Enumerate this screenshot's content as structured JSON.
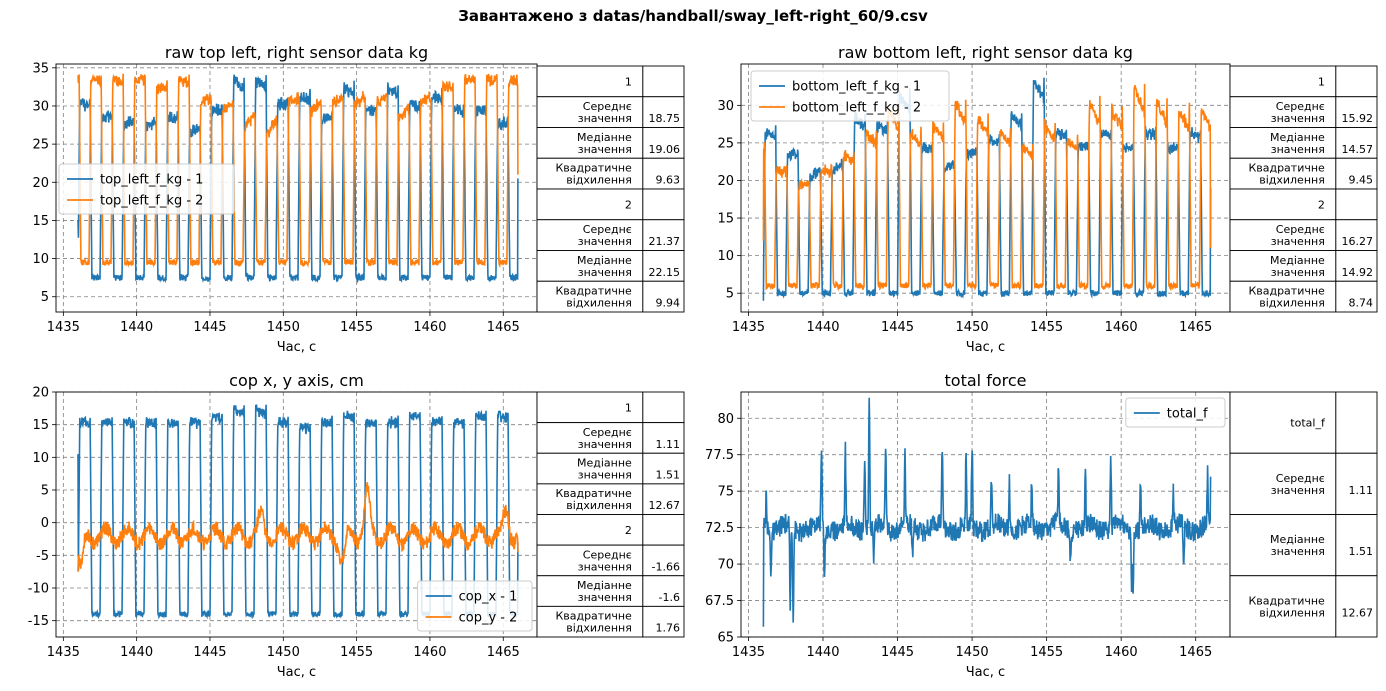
{
  "suptitle": "Завантажено з datas/handball/sway_left-right_60/9.csv",
  "colors": {
    "series1": "#1f77b4",
    "series2": "#ff7f0e",
    "grid": "#808080"
  },
  "chart_data": [
    {
      "type": "line",
      "title": "raw top left, right sensor data kg",
      "xlabel": "Час, с",
      "ylabel": "",
      "xlim": [
        1434.5,
        1467.3
      ],
      "ylim": [
        3.0,
        35.5
      ],
      "xticks": [
        1435,
        1440,
        1445,
        1450,
        1455,
        1460,
        1465
      ],
      "yticks": [
        5,
        10,
        15,
        20,
        25,
        30,
        35
      ],
      "grid": true,
      "legend_position": "center-left",
      "series": [
        {
          "name": "top_left_f_kg - 1",
          "kind": "square",
          "phase": 0.0,
          "min": 7.5,
          "max": 30.0,
          "start": 15.0,
          "end": 20.5,
          "peaks": [
            31,
            29,
            28,
            28,
            29,
            27,
            30,
            34,
            34,
            31,
            32,
            29,
            33,
            30,
            33,
            31,
            32,
            30,
            30,
            28
          ]
        },
        {
          "name": "top_left_f_kg - 2",
          "kind": "square",
          "phase": 0.5,
          "min": 9.5,
          "max": 33.5,
          "start": 34.0,
          "end": 21.0,
          "peaks": [
            34,
            34,
            34,
            34,
            33,
            34,
            31,
            30,
            28,
            27,
            31,
            30,
            31,
            31,
            31,
            29,
            31,
            33,
            34,
            34
          ]
        }
      ],
      "table": [
        {
          "label": "1",
          "value": ""
        },
        {
          "label": "Середнє\nзначення",
          "value": "18.75"
        },
        {
          "label": "Медіанне\nзначення",
          "value": "19.06"
        },
        {
          "label": "Квадратичне\nвідхилення",
          "value": "9.63"
        },
        {
          "label": "2",
          "value": ""
        },
        {
          "label": "Середнє\nзначення",
          "value": "21.37"
        },
        {
          "label": "Медіанне\nзначення",
          "value": "22.15"
        },
        {
          "label": "Квадратичне\nвідхилення",
          "value": "9.94"
        }
      ]
    },
    {
      "type": "line",
      "title": "raw bottom left, right sensor data  kg",
      "xlabel": "Час, с",
      "ylabel": "",
      "xlim": [
        1434.5,
        1467.3
      ],
      "ylim": [
        2.5,
        35.5
      ],
      "xticks": [
        1435,
        1440,
        1445,
        1450,
        1455,
        1460,
        1465
      ],
      "yticks": [
        5,
        10,
        15,
        20,
        25,
        30
      ],
      "grid": true,
      "legend_position": "top-left",
      "series": [
        {
          "name": "bottom_left_f_kg - 1",
          "kind": "square",
          "phase": 0.0,
          "min": 5.0,
          "max": 25.0,
          "start": 4.0,
          "end": 19.0,
          "peaks": [
            27,
            24,
            21,
            22,
            29,
            28,
            32,
            25,
            22,
            24,
            26,
            29,
            34,
            27,
            25,
            27,
            25,
            27,
            25,
            27
          ]
        },
        {
          "name": "bottom_left_f_kg - 2",
          "kind": "square",
          "phase": 0.5,
          "min": 6.0,
          "max": 21.0,
          "start": 12.0,
          "end": 11.0,
          "peaks": [
            25,
            22,
            20,
            22,
            24,
            27,
            30,
            27,
            28,
            31,
            29,
            27,
            25,
            28,
            26,
            31,
            30,
            33,
            31,
            30
          ]
        }
      ],
      "table": [
        {
          "label": "1",
          "value": ""
        },
        {
          "label": "Середнє\nзначення",
          "value": "15.92"
        },
        {
          "label": "Медіанне\nзначення",
          "value": "14.57"
        },
        {
          "label": "Квадратичне\nвідхилення",
          "value": "9.45"
        },
        {
          "label": "2",
          "value": ""
        },
        {
          "label": "Середнє\nзначення",
          "value": "16.27"
        },
        {
          "label": "Медіанне\nзначення",
          "value": "14.92"
        },
        {
          "label": "Квадратичне\nвідхилення",
          "value": "8.74"
        }
      ]
    },
    {
      "type": "line",
      "title": "cop x, y axis, cm",
      "xlabel": "Час, с",
      "ylabel": "",
      "xlim": [
        1434.5,
        1467.3
      ],
      "ylim": [
        -17.5,
        20.0
      ],
      "xticks": [
        1435,
        1440,
        1445,
        1450,
        1455,
        1460,
        1465
      ],
      "yticks": [
        -15,
        -10,
        -5,
        0,
        5,
        10,
        15,
        20
      ],
      "grid": true,
      "legend_position": "bottom-right",
      "series": [
        {
          "name": "cop_x - 1",
          "kind": "square",
          "phase": 0.0,
          "min": -14.0,
          "max": 15.5,
          "start": 10.5,
          "end": -3.0,
          "peaks": [
            16,
            16,
            16,
            16,
            16,
            16,
            17,
            18,
            18,
            16,
            15,
            16,
            17,
            16,
            16,
            17,
            16,
            16,
            17,
            17
          ]
        },
        {
          "name": "cop_y - 2",
          "kind": "noise",
          "base": -2.0,
          "amp": 2.0,
          "start": -7.5,
          "end": -4.5,
          "bumps": [
            [
              1455.7,
              4.7
            ],
            [
              1436.2,
              -7.0
            ],
            [
              1454.0,
              -6.0
            ],
            [
              1448.5,
              1.0
            ],
            [
              1465.2,
              1.5
            ]
          ]
        }
      ],
      "table": [
        {
          "label": "1",
          "value": ""
        },
        {
          "label": "Середнє\nзначення",
          "value": "1.11"
        },
        {
          "label": "Медіанне\nзначення",
          "value": "1.51"
        },
        {
          "label": "Квадратичне\nвідхилення",
          "value": "12.67"
        },
        {
          "label": "2",
          "value": ""
        },
        {
          "label": "Середнє\nзначення",
          "value": "-1.66"
        },
        {
          "label": "Медіанне\nзначення",
          "value": "-1.6"
        },
        {
          "label": "Квадратичне\nвідхилення",
          "value": "1.76"
        }
      ]
    },
    {
      "type": "line",
      "title": "total force",
      "xlabel": "Час, с",
      "ylabel": "",
      "xlim": [
        1434.5,
        1467.3
      ],
      "ylim": [
        65.0,
        81.8
      ],
      "xticks": [
        1435,
        1440,
        1445,
        1450,
        1455,
        1460,
        1465
      ],
      "yticks": [
        65.0,
        67.5,
        70.0,
        72.5,
        75.0,
        77.5,
        80.0
      ],
      "grid": true,
      "legend_position": "top-right",
      "series": [
        {
          "name": "total_f",
          "kind": "spiky",
          "base": 72.5,
          "amp": 0.7,
          "start": 65.7,
          "end": 76.0,
          "spikes": [
            [
              1436.2,
              75.0
            ],
            [
              1436.5,
              69.8
            ],
            [
              1437.8,
              67.0
            ],
            [
              1438.0,
              66.6
            ],
            [
              1439.9,
              77.7
            ],
            [
              1440.1,
              69.5
            ],
            [
              1441.5,
              77.5
            ],
            [
              1442.8,
              78.0
            ],
            [
              1443.1,
              81.0
            ],
            [
              1443.4,
              70.2
            ],
            [
              1444.2,
              78.5
            ],
            [
              1445.5,
              77.3
            ],
            [
              1446.0,
              70.3
            ],
            [
              1448.0,
              77.7
            ],
            [
              1449.6,
              77.3
            ],
            [
              1450.0,
              78.3
            ],
            [
              1451.3,
              76.0
            ],
            [
              1452.5,
              76.0
            ],
            [
              1454.0,
              75.8
            ],
            [
              1455.8,
              76.8
            ],
            [
              1456.6,
              70.2
            ],
            [
              1457.6,
              76.0
            ],
            [
              1459.3,
              77.7
            ],
            [
              1460.8,
              69.0
            ],
            [
              1460.7,
              68.6
            ],
            [
              1461.3,
              75.6
            ],
            [
              1463.5,
              75.0
            ],
            [
              1464.2,
              70.2
            ],
            [
              1465.8,
              76.2
            ]
          ]
        }
      ],
      "table": [
        {
          "label": "total_f",
          "value": ""
        },
        {
          "label": "Середнє\nзначення",
          "value": "1.11"
        },
        {
          "label": "Медіанне\nзначення",
          "value": "1.51"
        },
        {
          "label": "Квадратичне\nвідхилення",
          "value": "12.67"
        }
      ]
    }
  ]
}
